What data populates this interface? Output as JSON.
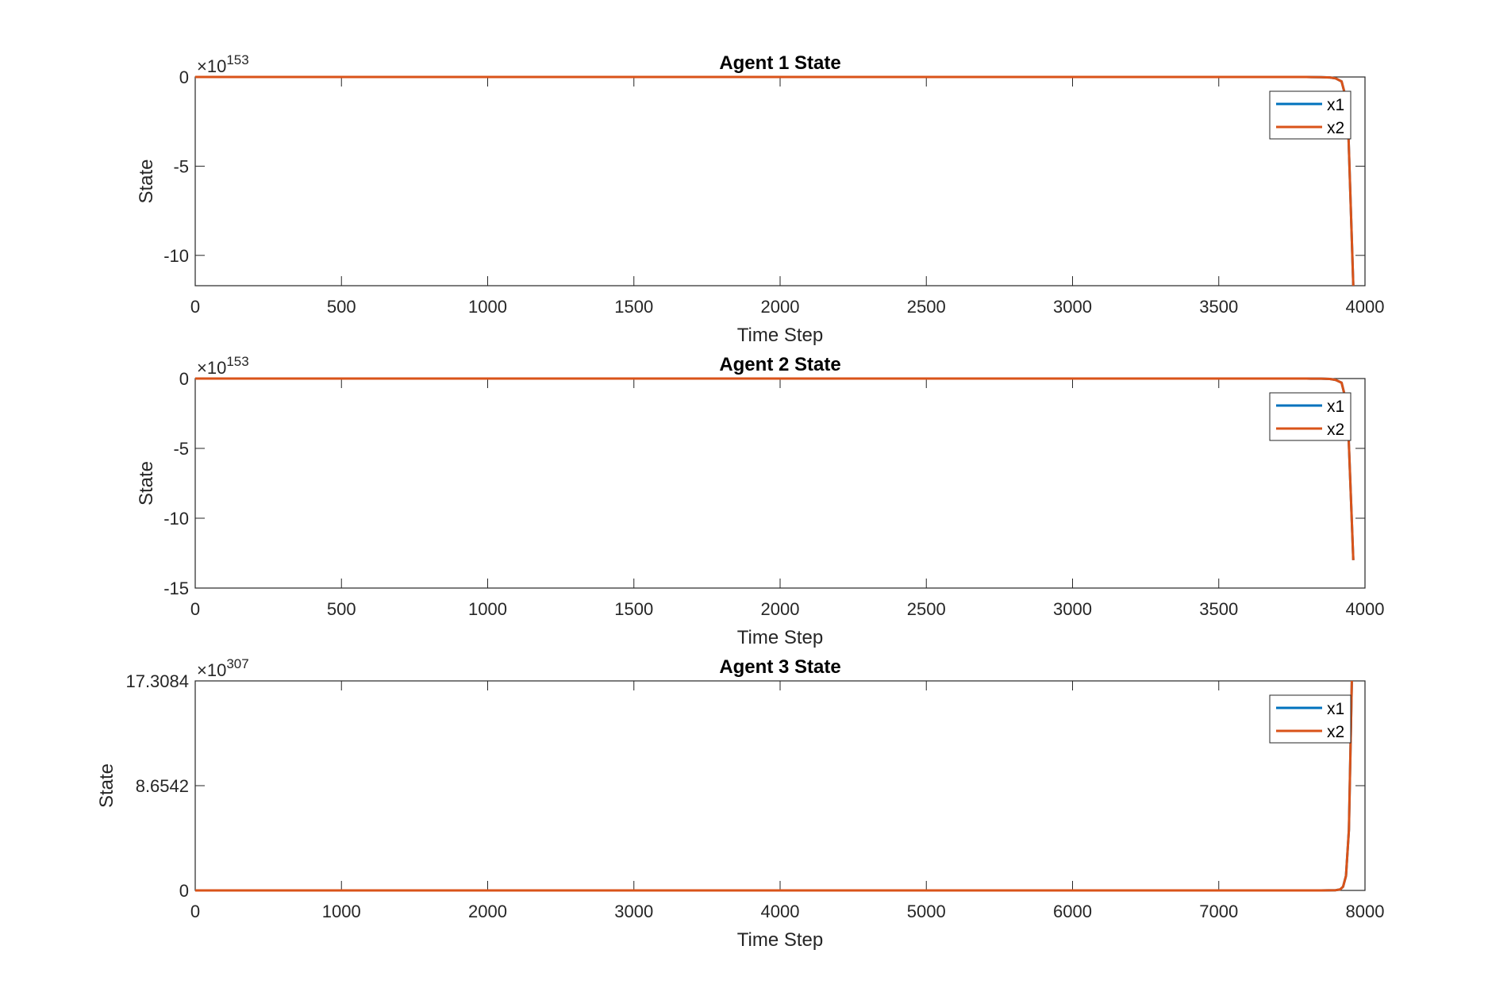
{
  "colors": {
    "x1": "#0072BD",
    "x2": "#D95319",
    "axis": "#262626"
  },
  "chart_data": [
    {
      "type": "line",
      "title": "Agent 1 State",
      "xlabel": "Time Step",
      "ylabel": "State",
      "exponent": {
        "base": "×10",
        "power": "153"
      },
      "xlim": [
        0,
        4000
      ],
      "ylim": [
        -11.7,
        0
      ],
      "xticks": [
        0,
        500,
        1000,
        1500,
        2000,
        2500,
        3000,
        3500,
        4000
      ],
      "xtick_labels": [
        "0",
        "500",
        "1000",
        "1500",
        "2000",
        "2500",
        "3000",
        "3500",
        "4000"
      ],
      "yticks": [
        0,
        -5,
        -10
      ],
      "ytick_labels": [
        "0",
        "-5",
        "-10"
      ],
      "legend": {
        "location": "top-right",
        "entries": [
          "x1",
          "x2"
        ]
      },
      "grid": false,
      "series": [
        {
          "name": "x1",
          "x": [
            0,
            1000,
            2000,
            3000,
            3700,
            3800,
            3850,
            3880,
            3900,
            3920,
            3940,
            3960
          ],
          "y": [
            0,
            0,
            0,
            0,
            0,
            -0.002,
            -0.01,
            -0.03,
            -0.08,
            -0.25,
            -1.5,
            -11.7
          ]
        },
        {
          "name": "x2",
          "x": [
            0,
            1000,
            2000,
            3000,
            3700,
            3800,
            3850,
            3880,
            3900,
            3920,
            3940,
            3960
          ],
          "y": [
            0,
            0,
            0,
            0,
            0,
            -0.002,
            -0.01,
            -0.03,
            -0.08,
            -0.25,
            -1.5,
            -11.7
          ]
        }
      ]
    },
    {
      "type": "line",
      "title": "Agent 2 State",
      "xlabel": "Time Step",
      "ylabel": "State",
      "exponent": {
        "base": "×10",
        "power": "153"
      },
      "xlim": [
        0,
        4000
      ],
      "ylim": [
        -15,
        0
      ],
      "xticks": [
        0,
        500,
        1000,
        1500,
        2000,
        2500,
        3000,
        3500,
        4000
      ],
      "xtick_labels": [
        "0",
        "500",
        "1000",
        "1500",
        "2000",
        "2500",
        "3000",
        "3500",
        "4000"
      ],
      "yticks": [
        0,
        -5,
        -10,
        -15
      ],
      "ytick_labels": [
        "0",
        "-5",
        "-10",
        "-15"
      ],
      "legend": {
        "location": "top-right",
        "entries": [
          "x1",
          "x2"
        ]
      },
      "grid": false,
      "series": [
        {
          "name": "x1",
          "x": [
            0,
            1000,
            2000,
            3000,
            3700,
            3800,
            3850,
            3880,
            3900,
            3920,
            3940,
            3960
          ],
          "y": [
            0,
            0,
            0,
            0,
            0,
            -0.002,
            -0.01,
            -0.03,
            -0.1,
            -0.3,
            -2,
            -13
          ]
        },
        {
          "name": "x2",
          "x": [
            0,
            1000,
            2000,
            3000,
            3700,
            3800,
            3850,
            3880,
            3900,
            3920,
            3940,
            3960
          ],
          "y": [
            0,
            0,
            0,
            0,
            0,
            -0.002,
            -0.01,
            -0.03,
            -0.1,
            -0.3,
            -2,
            -13
          ]
        }
      ]
    },
    {
      "type": "line",
      "title": "Agent 3 State",
      "xlabel": "Time Step",
      "ylabel": "State",
      "exponent": {
        "base": "×10",
        "power": "307"
      },
      "xlim": [
        0,
        8000
      ],
      "ylim": [
        0,
        17.3084
      ],
      "xticks": [
        0,
        1000,
        2000,
        3000,
        4000,
        5000,
        6000,
        7000,
        8000
      ],
      "xtick_labels": [
        "0",
        "1000",
        "2000",
        "3000",
        "4000",
        "5000",
        "6000",
        "7000",
        "8000"
      ],
      "yticks": [
        0,
        8.6542,
        17.3084
      ],
      "ytick_labels": [
        "0",
        "8.6542",
        "17.3084"
      ],
      "legend": {
        "location": "top-right",
        "entries": [
          "x1",
          "x2"
        ]
      },
      "grid": false,
      "series": [
        {
          "name": "x1",
          "x": [
            0,
            2000,
            4000,
            6000,
            7500,
            7700,
            7750,
            7800,
            7830,
            7850,
            7870,
            7890,
            7910
          ],
          "y": [
            0,
            0,
            0,
            0,
            0,
            0.001,
            0.005,
            0.02,
            0.08,
            0.3,
            1.2,
            5,
            17.3084
          ]
        },
        {
          "name": "x2",
          "x": [
            0,
            2000,
            4000,
            6000,
            7500,
            7700,
            7750,
            7800,
            7830,
            7850,
            7870,
            7890,
            7910
          ],
          "y": [
            0,
            0,
            0,
            0,
            0,
            0.001,
            0.005,
            0.02,
            0.08,
            0.3,
            1.2,
            5,
            17.3084
          ]
        }
      ]
    }
  ]
}
